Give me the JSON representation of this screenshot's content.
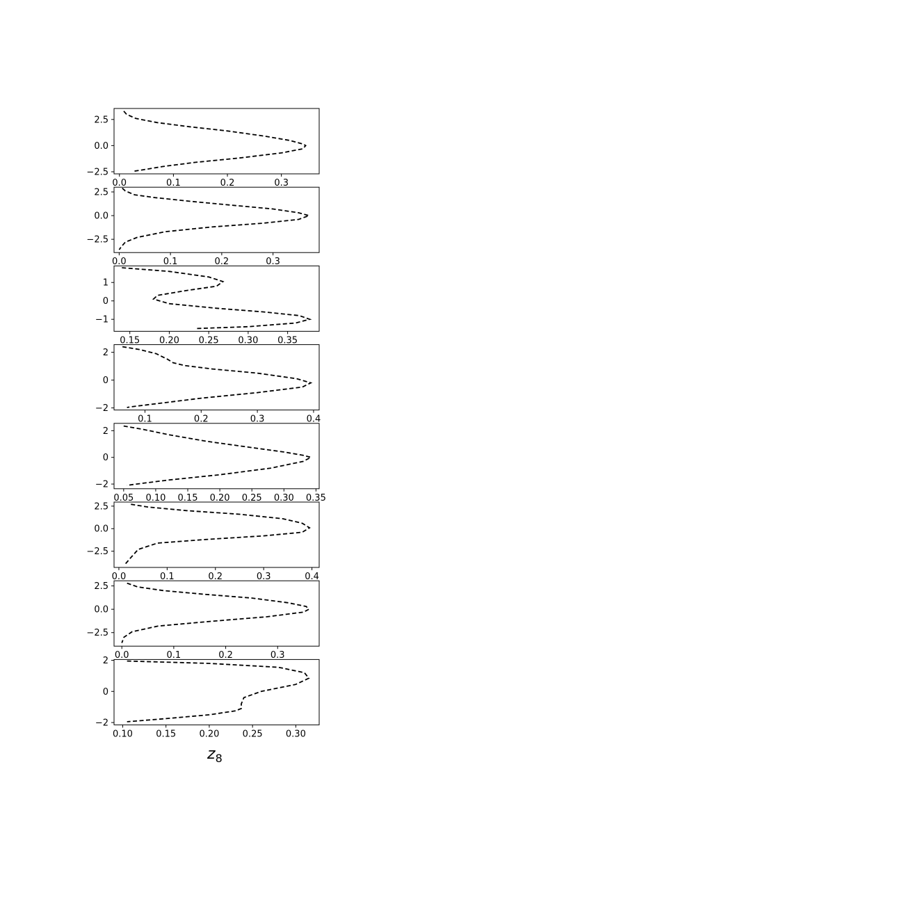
{
  "chart_data": [
    {
      "type": "line",
      "xlim": [
        -0.01,
        0.37
      ],
      "ylim": [
        -2.7,
        3.55
      ],
      "xticks": [
        0.0,
        0.1,
        0.2,
        0.3
      ],
      "xtick_labels": [
        "0.0",
        "0.1",
        "0.2",
        "0.3"
      ],
      "yticks": [
        -2.5,
        0.0,
        2.5
      ],
      "ytick_labels": [
        "−2.5",
        "0.0",
        "2.5"
      ],
      "series": [
        {
          "x": [
            0.008,
            0.013,
            0.03,
            0.07,
            0.13,
            0.2,
            0.27,
            0.315,
            0.34,
            0.345,
            0.34,
            0.3,
            0.22,
            0.14,
            0.08,
            0.045,
            0.027
          ],
          "y": [
            3.3,
            3.0,
            2.6,
            2.2,
            1.8,
            1.4,
            0.9,
            0.5,
            0.15,
            0.0,
            -0.3,
            -0.7,
            -1.2,
            -1.6,
            -2.0,
            -2.3,
            -2.45
          ]
        }
      ]
    },
    {
      "type": "line",
      "xlim": [
        -0.01,
        0.39
      ],
      "ylim": [
        -3.9,
        3.0
      ],
      "xticks": [
        0.0,
        0.1,
        0.2,
        0.3
      ],
      "xtick_labels": [
        "0.0",
        "0.1",
        "0.2",
        "0.3"
      ],
      "yticks": [
        -2.5,
        0.0,
        2.5
      ],
      "ytick_labels": [
        "−2.5",
        "0.0",
        "2.5"
      ],
      "series": [
        {
          "x": [
            0.006,
            0.012,
            0.03,
            0.07,
            0.14,
            0.22,
            0.3,
            0.35,
            0.37,
            0.35,
            0.28,
            0.18,
            0.09,
            0.035,
            0.012,
            0.004,
            0.0
          ],
          "y": [
            2.9,
            2.6,
            2.2,
            1.9,
            1.5,
            1.1,
            0.7,
            0.3,
            0.0,
            -0.4,
            -0.8,
            -1.2,
            -1.7,
            -2.3,
            -2.8,
            -3.3,
            -3.6
          ]
        }
      ]
    },
    {
      "type": "line",
      "xlim": [
        0.13,
        0.39
      ],
      "ylim": [
        -1.65,
        1.9
      ],
      "xticks": [
        0.15,
        0.2,
        0.25,
        0.3,
        0.35
      ],
      "xtick_labels": [
        "0.15",
        "0.20",
        "0.25",
        "0.30",
        "0.35"
      ],
      "yticks": [
        -1,
        0,
        1
      ],
      "ytick_labels": [
        "−1",
        "0",
        "1"
      ],
      "series": [
        {
          "x": [
            0.14,
            0.2,
            0.25,
            0.268,
            0.26,
            0.22,
            0.185,
            0.18,
            0.2,
            0.26,
            0.32,
            0.365,
            0.378,
            0.36,
            0.3,
            0.235
          ],
          "y": [
            1.8,
            1.6,
            1.3,
            1.05,
            0.8,
            0.55,
            0.3,
            0.1,
            -0.15,
            -0.4,
            -0.6,
            -0.8,
            -1.0,
            -1.2,
            -1.4,
            -1.5
          ]
        }
      ]
    },
    {
      "type": "line",
      "xlim": [
        0.045,
        0.41
      ],
      "ylim": [
        -2.15,
        2.55
      ],
      "xticks": [
        0.1,
        0.2,
        0.3,
        0.4
      ],
      "xtick_labels": [
        "0.1",
        "0.2",
        "0.3",
        "0.4"
      ],
      "yticks": [
        -2,
        0,
        2
      ],
      "ytick_labels": [
        "−2",
        "0",
        "2"
      ],
      "series": [
        {
          "x": [
            0.06,
            0.09,
            0.12,
            0.14,
            0.15,
            0.17,
            0.22,
            0.3,
            0.37,
            0.395,
            0.38,
            0.3,
            0.2,
            0.12,
            0.075,
            0.068
          ],
          "y": [
            2.4,
            2.2,
            1.9,
            1.5,
            1.25,
            1.05,
            0.8,
            0.5,
            0.1,
            -0.2,
            -0.5,
            -0.9,
            -1.3,
            -1.7,
            -1.92,
            -1.97
          ]
        }
      ]
    },
    {
      "type": "line",
      "xlim": [
        0.035,
        0.355
      ],
      "ylim": [
        -2.35,
        2.55
      ],
      "xticks": [
        0.05,
        0.1,
        0.15,
        0.2,
        0.25,
        0.3,
        0.35
      ],
      "xtick_labels": [
        "0.05",
        "0.10",
        "0.15",
        "0.20",
        "0.25",
        "0.30",
        "0.35"
      ],
      "yticks": [
        -2,
        0,
        2
      ],
      "ytick_labels": [
        "−2",
        "0",
        "2"
      ],
      "series": [
        {
          "x": [
            0.05,
            0.08,
            0.12,
            0.18,
            0.24,
            0.3,
            0.33,
            0.342,
            0.33,
            0.28,
            0.2,
            0.12,
            0.07,
            0.055
          ],
          "y": [
            2.35,
            2.1,
            1.7,
            1.2,
            0.8,
            0.4,
            0.15,
            0.0,
            -0.3,
            -0.8,
            -1.3,
            -1.7,
            -2.0,
            -2.1
          ]
        }
      ]
    },
    {
      "type": "line",
      "xlim": [
        -0.01,
        0.415
      ],
      "ylim": [
        -4.3,
        2.95
      ],
      "xticks": [
        0.0,
        0.1,
        0.2,
        0.3,
        0.4
      ],
      "xtick_labels": [
        "0.0",
        "0.1",
        "0.2",
        "0.3",
        "0.4"
      ],
      "yticks": [
        -2.5,
        0.0,
        2.5
      ],
      "ytick_labels": [
        "−2.5",
        "0.0",
        "2.5"
      ],
      "series": [
        {
          "x": [
            0.025,
            0.06,
            0.14,
            0.25,
            0.34,
            0.38,
            0.395,
            0.38,
            0.3,
            0.18,
            0.08,
            0.04,
            0.025,
            0.012
          ],
          "y": [
            2.7,
            2.4,
            2.0,
            1.6,
            1.1,
            0.6,
            0.1,
            -0.4,
            -0.8,
            -1.2,
            -1.6,
            -2.3,
            -3.2,
            -4.0
          ]
        }
      ]
    },
    {
      "type": "line",
      "xlim": [
        -0.015,
        0.38
      ],
      "ylim": [
        -3.95,
        3.05
      ],
      "xticks": [
        0.0,
        0.1,
        0.2,
        0.3
      ],
      "xtick_labels": [
        "0.0",
        "0.1",
        "0.2",
        "0.3"
      ],
      "yticks": [
        -2.5,
        0.0,
        2.5
      ],
      "ytick_labels": [
        "−2.5",
        "0.0",
        "2.5"
      ],
      "series": [
        {
          "x": [
            0.01,
            0.03,
            0.08,
            0.16,
            0.25,
            0.32,
            0.355,
            0.36,
            0.35,
            0.28,
            0.17,
            0.07,
            0.02,
            0.004,
            0.0
          ],
          "y": [
            2.8,
            2.4,
            2.0,
            1.6,
            1.2,
            0.7,
            0.3,
            0.0,
            -0.3,
            -0.8,
            -1.3,
            -1.8,
            -2.4,
            -3.0,
            -3.6
          ]
        }
      ]
    },
    {
      "type": "line",
      "xlim": [
        0.09,
        0.327
      ],
      "ylim": [
        -2.15,
        2.05
      ],
      "xticks": [
        0.1,
        0.15,
        0.2,
        0.25,
        0.3
      ],
      "xtick_labels": [
        "0.10",
        "0.15",
        "0.20",
        "0.25",
        "0.30"
      ],
      "yticks": [
        -2,
        0,
        2
      ],
      "ytick_labels": [
        "−2",
        "0",
        "2"
      ],
      "series": [
        {
          "x": [
            0.105,
            0.2,
            0.28,
            0.31,
            0.315,
            0.3,
            0.26,
            0.24,
            0.237,
            0.237,
            0.23,
            0.2,
            0.15,
            0.105
          ],
          "y": [
            1.95,
            1.8,
            1.55,
            1.2,
            0.85,
            0.45,
            0.0,
            -0.4,
            -0.8,
            -1.1,
            -1.25,
            -1.5,
            -1.75,
            -1.95
          ]
        }
      ]
    }
  ],
  "xlabel": {
    "base": "z",
    "sub": "8"
  }
}
